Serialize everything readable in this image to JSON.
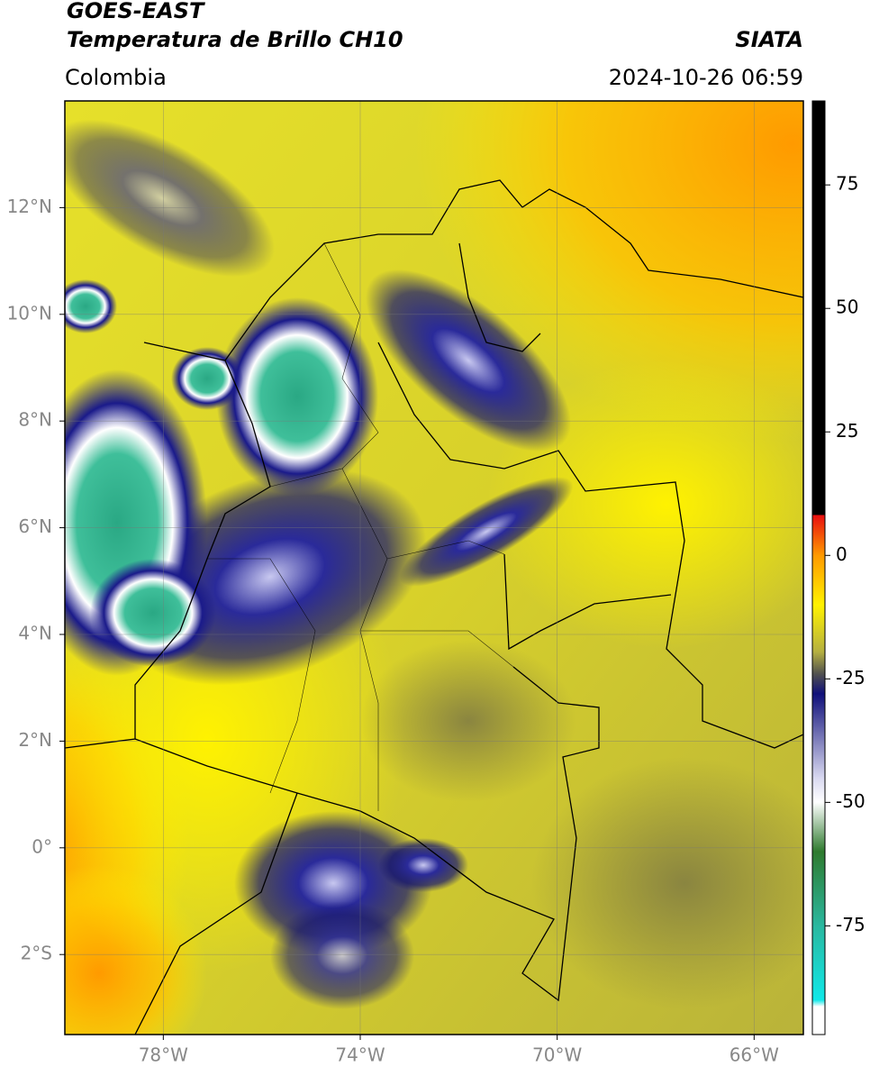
{
  "header": {
    "title": "GOES-EAST",
    "subtitle": "Temperatura de Brillo CH10",
    "source": "SIATA",
    "region": "Colombia",
    "timestamp": "2024-10-26 06:59"
  },
  "map": {
    "xlim": [
      -80,
      -65
    ],
    "ylim": [
      -3.5,
      14
    ],
    "xticks": [
      {
        "value": -78,
        "label": "78°W"
      },
      {
        "value": -74,
        "label": "74°W"
      },
      {
        "value": -70,
        "label": "70°W"
      },
      {
        "value": -66,
        "label": "66°W"
      }
    ],
    "yticks": [
      {
        "value": 12,
        "label": "12°N"
      },
      {
        "value": 10,
        "label": "10°N"
      },
      {
        "value": 8,
        "label": "8°N"
      },
      {
        "value": 6,
        "label": "6°N"
      },
      {
        "value": 4,
        "label": "4°N"
      },
      {
        "value": 2,
        "label": "2°N"
      },
      {
        "value": 0,
        "label": "0°"
      },
      {
        "value": -2,
        "label": "2°S"
      }
    ],
    "grid": true
  },
  "colorbar": {
    "lim": [
      -97,
      92
    ],
    "ticks": [
      75,
      50,
      25,
      0,
      -25,
      -50,
      -75
    ]
  }
}
